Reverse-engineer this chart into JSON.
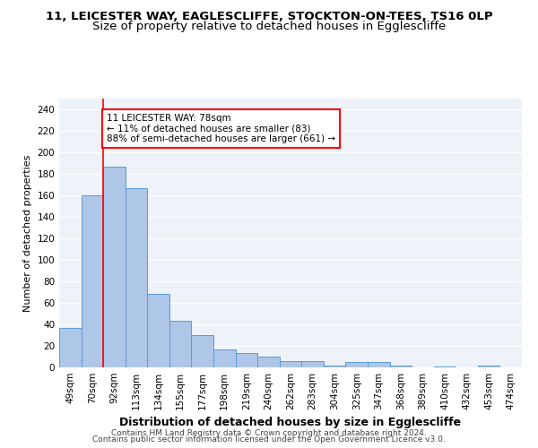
{
  "title1": "11, LEICESTER WAY, EAGLESCLIFFE, STOCKTON-ON-TEES, TS16 0LP",
  "title2": "Size of property relative to detached houses in Egglescliffe",
  "xlabel": "Distribution of detached houses by size in Egglescliffe",
  "ylabel": "Number of detached properties",
  "categories": [
    "49sqm",
    "70sqm",
    "92sqm",
    "113sqm",
    "134sqm",
    "155sqm",
    "177sqm",
    "198sqm",
    "219sqm",
    "240sqm",
    "262sqm",
    "283sqm",
    "304sqm",
    "325sqm",
    "347sqm",
    "368sqm",
    "389sqm",
    "410sqm",
    "432sqm",
    "453sqm",
    "474sqm"
  ],
  "values": [
    37,
    160,
    187,
    167,
    68,
    43,
    30,
    17,
    13,
    10,
    6,
    6,
    2,
    5,
    5,
    2,
    0,
    1,
    0,
    2,
    0
  ],
  "bar_color": "#aec6e8",
  "bar_edge_color": "#5b9bd5",
  "redline_x": 1.5,
  "annotation_text": "11 LEICESTER WAY: 78sqm\n← 11% of detached houses are smaller (83)\n88% of semi-detached houses are larger (661) →",
  "annotation_box_color": "white",
  "annotation_box_edge_color": "red",
  "redline_color": "red",
  "ylim": [
    0,
    250
  ],
  "yticks": [
    0,
    20,
    40,
    60,
    80,
    100,
    120,
    140,
    160,
    180,
    200,
    220,
    240
  ],
  "footer1": "Contains HM Land Registry data © Crown copyright and database right 2024.",
  "footer2": "Contains public sector information licensed under the Open Government Licence v3.0.",
  "background_color": "#eef2f9",
  "grid_color": "white",
  "title1_fontsize": 9.5,
  "title2_fontsize": 9.5,
  "xlabel_fontsize": 9,
  "ylabel_fontsize": 8,
  "tick_fontsize": 7.5,
  "annotation_fontsize": 7.5,
  "footer_fontsize": 6.5
}
